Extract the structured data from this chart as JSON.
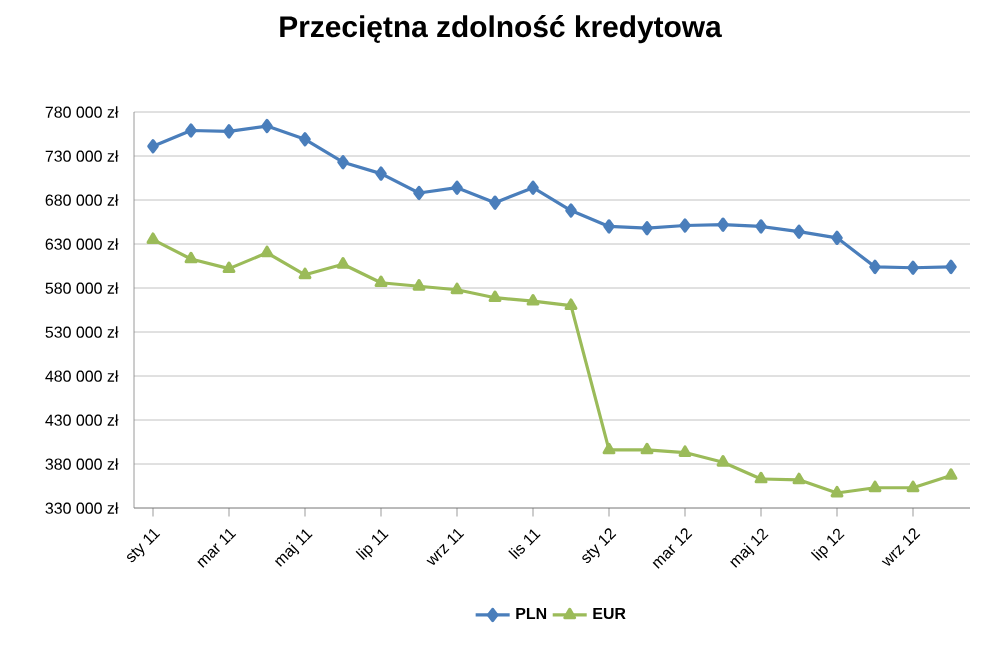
{
  "chart_data": {
    "type": "line",
    "title": "Przeciętna zdolność kredytowa",
    "categories": [
      "sty 11",
      null,
      "mar 11",
      null,
      "maj 11",
      null,
      "lip 11",
      null,
      "wrz 11",
      null,
      "lis 11",
      null,
      "sty 12",
      null,
      "mar 12",
      null,
      "maj 12",
      null,
      "lip 12",
      null,
      "wrz 12",
      null
    ],
    "series": [
      {
        "name": "PLN",
        "color": "#4a7ebb",
        "marker": "diamond",
        "values": [
          741000,
          759000,
          758000,
          764000,
          749000,
          723000,
          710000,
          688000,
          694000,
          677000,
          694000,
          668000,
          650000,
          648000,
          651000,
          652000,
          650000,
          644000,
          637000,
          604000,
          603000,
          604000
        ]
      },
      {
        "name": "EUR",
        "color": "#9bbb59",
        "marker": "triangle",
        "values": [
          635000,
          613000,
          602000,
          620000,
          595000,
          607000,
          586000,
          582000,
          578000,
          569000,
          565000,
          560000,
          396000,
          396000,
          393000,
          382000,
          363000,
          362000,
          347000,
          353000,
          353000,
          367000
        ]
      }
    ],
    "ylim": [
      330000,
      780000
    ],
    "yticks": [
      {
        "value": 330000,
        "label": "330 000 zł"
      },
      {
        "value": 380000,
        "label": "380 000 zł"
      },
      {
        "value": 430000,
        "label": "430 000 zł"
      },
      {
        "value": 480000,
        "label": "480 000 zł"
      },
      {
        "value": 530000,
        "label": "530 000 zł"
      },
      {
        "value": 580000,
        "label": "580 000 zł"
      },
      {
        "value": 630000,
        "label": "630 000 zł"
      },
      {
        "value": 680000,
        "label": "680 000 zł"
      },
      {
        "value": 730000,
        "label": "730 000 zł"
      },
      {
        "value": 780000,
        "label": "780 000 zł"
      }
    ],
    "grid": "y",
    "legend": "bottom",
    "line_style": "solid"
  }
}
